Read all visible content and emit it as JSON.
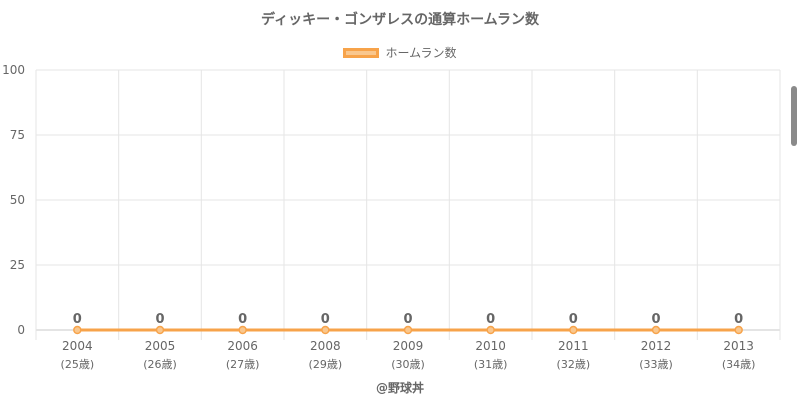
{
  "title": "ディッキー・ゴンザレスの通算ホームラン数",
  "credit": "@野球丼",
  "colors": {
    "series_line": "#f7a34a",
    "series_fill": "#f9c78e",
    "grid": "#e5e5e5",
    "text": "#666666"
  },
  "chart_data": {
    "type": "line",
    "title": "ディッキー・ゴンザレスの通算ホームラン数",
    "categories": [
      "2004",
      "2005",
      "2006",
      "2008",
      "2009",
      "2010",
      "2011",
      "2012",
      "2013"
    ],
    "category_sublabels": [
      "(25歳)",
      "(26歳)",
      "(27歳)",
      "(29歳)",
      "(30歳)",
      "(31歳)",
      "(32歳)",
      "(33歳)",
      "(34歳)"
    ],
    "series": [
      {
        "name": "ホームラン数",
        "values": [
          0,
          0,
          0,
          0,
          0,
          0,
          0,
          0,
          0
        ]
      }
    ],
    "ylim": [
      0,
      100
    ],
    "yticks": [
      0,
      25,
      50,
      75,
      100
    ],
    "grid": true,
    "legend_position": "top-center",
    "data_labels": true
  }
}
